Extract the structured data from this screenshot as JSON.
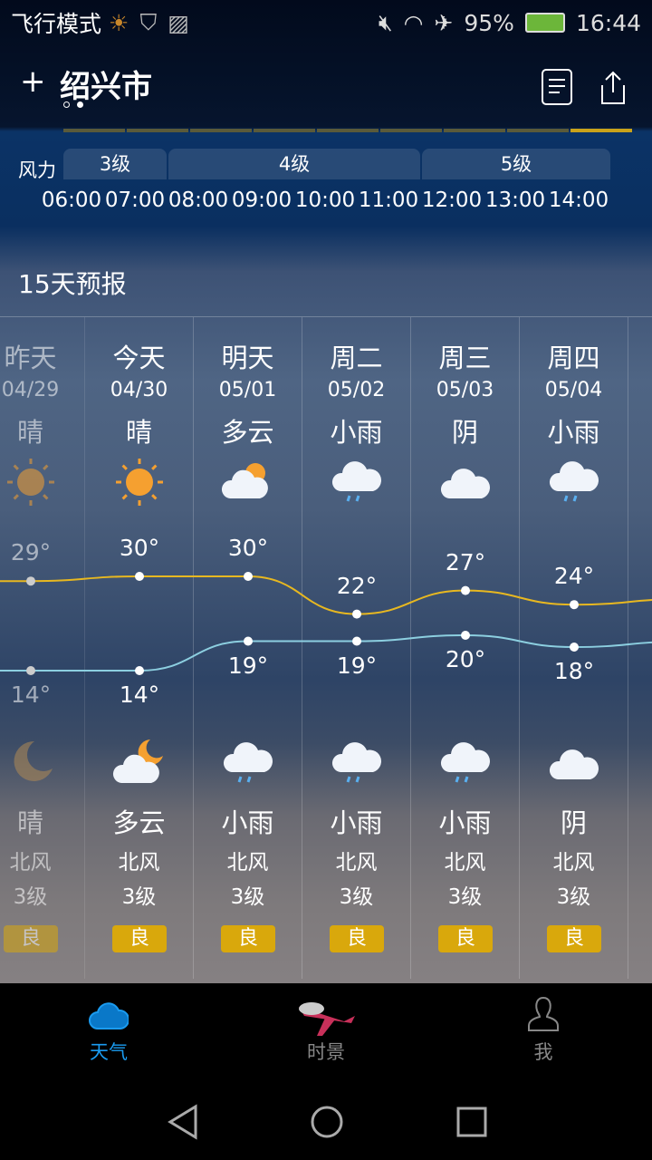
{
  "status": {
    "mode": "飞行模式",
    "battery": "95%",
    "time": "16:44"
  },
  "header": {
    "city": "绍兴市",
    "add": "+"
  },
  "wind": {
    "label": "风力",
    "segments": [
      "3级",
      "4级",
      "5级"
    ],
    "hours": [
      "06:00",
      "07:00",
      "08:00",
      "09:00",
      "10:00",
      "11:00",
      "12:00",
      "13:00",
      "14:00"
    ]
  },
  "forecast": {
    "title": "15天预报",
    "days": [
      {
        "day": "昨天",
        "date": "04/29",
        "cond_day": "晴",
        "icon_day": "sun",
        "high": "29°",
        "low": "14°",
        "icon_night": "moon",
        "cond_night": "晴",
        "wind_dir": "北风",
        "wind_level": "3级",
        "aqi": "良",
        "past": true
      },
      {
        "day": "今天",
        "date": "04/30",
        "cond_day": "晴",
        "icon_day": "sun",
        "high": "30°",
        "low": "14°",
        "icon_night": "cloud-moon",
        "cond_night": "多云",
        "wind_dir": "北风",
        "wind_level": "3级",
        "aqi": "良"
      },
      {
        "day": "明天",
        "date": "05/01",
        "cond_day": "多云",
        "icon_day": "cloud-sun",
        "high": "30°",
        "low": "19°",
        "icon_night": "rain",
        "cond_night": "小雨",
        "wind_dir": "北风",
        "wind_level": "3级",
        "aqi": "良"
      },
      {
        "day": "周二",
        "date": "05/02",
        "cond_day": "小雨",
        "icon_day": "rain",
        "high": "22°",
        "low": "19°",
        "icon_night": "rain",
        "cond_night": "小雨",
        "wind_dir": "北风",
        "wind_level": "3级",
        "aqi": "良"
      },
      {
        "day": "周三",
        "date": "05/03",
        "cond_day": "阴",
        "icon_day": "cloud",
        "high": "27°",
        "low": "20°",
        "icon_night": "rain",
        "cond_night": "小雨",
        "wind_dir": "北风",
        "wind_level": "3级",
        "aqi": "良"
      },
      {
        "day": "周四",
        "date": "05/04",
        "cond_day": "小雨",
        "icon_day": "rain",
        "high": "24°",
        "low": "18°",
        "icon_night": "cloud",
        "cond_night": "阴",
        "wind_dir": "北风",
        "wind_level": "3级",
        "aqi": "良"
      }
    ]
  },
  "colors": {
    "high_line": "#e8b820",
    "low_line": "#8ccfe0",
    "aqi_good": "#d9a80c",
    "active_tab": "#1a9bf0"
  },
  "nav": {
    "tabs": [
      {
        "label": "天气",
        "active": true
      },
      {
        "label": "时景"
      },
      {
        "label": "我"
      }
    ]
  }
}
